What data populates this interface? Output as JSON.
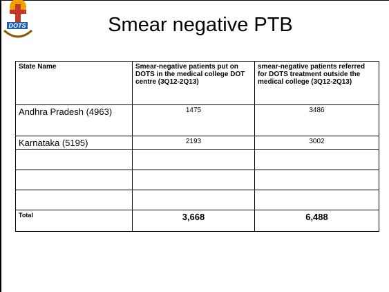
{
  "logo": {
    "text": "DOTS"
  },
  "title": "Smear negative PTB",
  "table": {
    "columns": [
      "State Name",
      "Smear-negative patients put on DOTS in the medical college DOT centre (3Q12-2Q13)",
      "smear-negative patients referred for DOTS treatment outside the medical college (3Q12-2Q13)"
    ],
    "rows": [
      [
        "Andhra Pradesh (4963)",
        "1475",
        "3486"
      ],
      [
        "Karnataka (5195)",
        "2193",
        "3002"
      ]
    ],
    "total": [
      "Total",
      "3,668",
      "6,488"
    ]
  }
}
